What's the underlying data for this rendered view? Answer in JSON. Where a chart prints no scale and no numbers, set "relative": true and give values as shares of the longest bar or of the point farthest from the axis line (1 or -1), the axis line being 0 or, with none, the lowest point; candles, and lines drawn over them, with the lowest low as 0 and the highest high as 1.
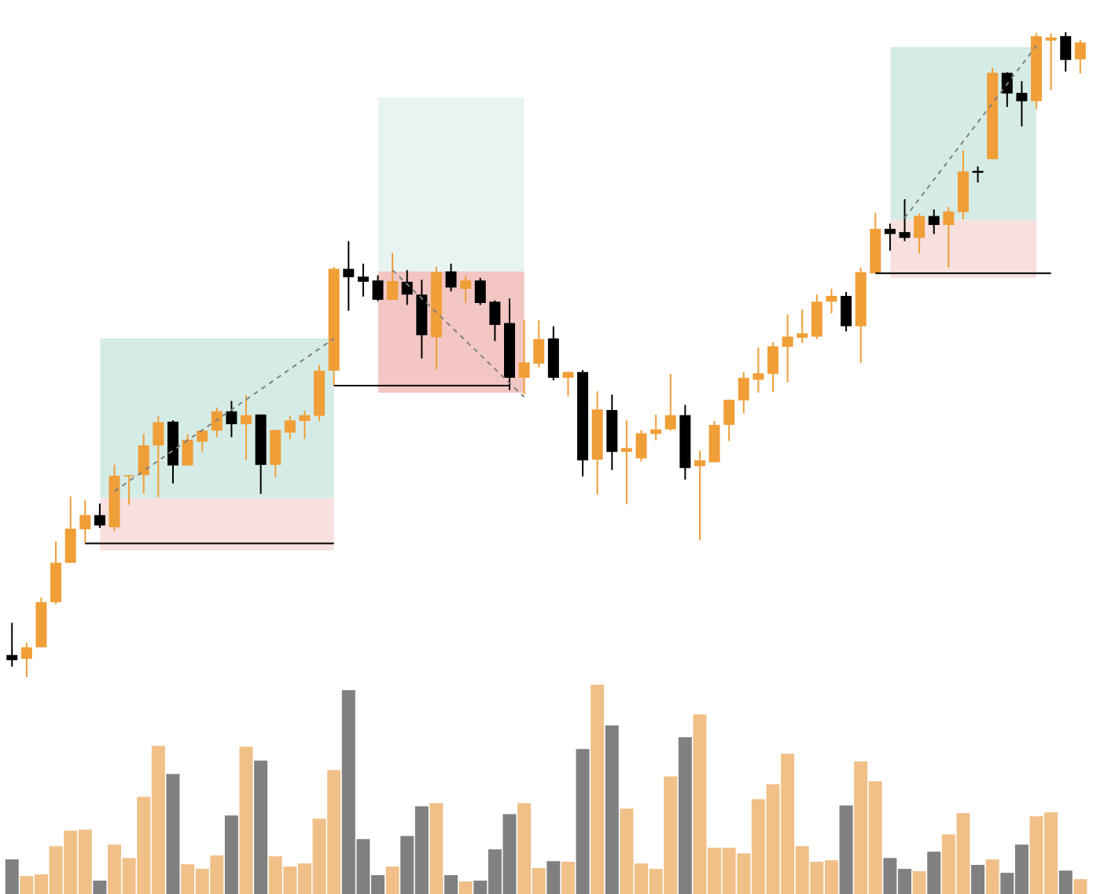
{
  "chart_data": [
    {
      "type": "candlestick",
      "relative": true,
      "tick_labels": false,
      "categories": [
        null,
        null,
        null,
        null,
        null,
        null,
        null,
        null,
        null,
        null,
        null,
        null,
        null,
        null,
        null,
        null,
        null,
        null,
        null,
        null,
        null,
        null,
        null,
        null,
        null,
        null,
        null,
        null,
        null,
        null,
        null,
        null,
        null,
        null,
        null,
        null,
        null,
        null,
        null,
        null,
        null,
        null,
        null,
        null,
        null,
        null,
        null,
        null,
        null,
        null,
        null,
        null,
        null,
        null,
        null,
        null,
        null,
        null,
        null,
        null,
        null,
        null,
        null,
        null,
        null,
        null,
        null,
        null,
        null,
        null,
        null,
        null,
        null,
        null
      ],
      "ohlc": [
        [
          0.034,
          0.084,
          0.016,
          0.026
        ],
        [
          0.028,
          0.053,
          0.0,
          0.046
        ],
        [
          0.046,
          0.123,
          0.046,
          0.116
        ],
        [
          0.116,
          0.21,
          0.113,
          0.177
        ],
        [
          0.177,
          0.28,
          0.177,
          0.23
        ],
        [
          0.229,
          0.274,
          0.208,
          0.251
        ],
        [
          0.251,
          0.269,
          0.231,
          0.235
        ],
        [
          0.232,
          0.329,
          0.226,
          0.312
        ],
        [
          0.311,
          0.313,
          0.267,
          0.313
        ],
        [
          0.313,
          0.377,
          0.284,
          0.359
        ],
        [
          0.359,
          0.405,
          0.279,
          0.395
        ],
        [
          0.396,
          0.398,
          0.3,
          0.328
        ],
        [
          0.328,
          0.377,
          0.328,
          0.368
        ],
        [
          0.365,
          0.382,
          0.35,
          0.382
        ],
        [
          0.382,
          0.418,
          0.372,
          0.412
        ],
        [
          0.412,
          0.428,
          0.372,
          0.392
        ],
        [
          0.392,
          0.437,
          0.336,
          0.406
        ],
        [
          0.407,
          0.407,
          0.284,
          0.329
        ],
        [
          0.329,
          0.383,
          0.31,
          0.383
        ],
        [
          0.379,
          0.405,
          0.369,
          0.398
        ],
        [
          0.397,
          0.413,
          0.369,
          0.406
        ],
        [
          0.405,
          0.484,
          0.397,
          0.475
        ],
        [
          0.475,
          0.636,
          0.451,
          0.633
        ],
        [
          0.633,
          0.676,
          0.568,
          0.62
        ],
        [
          0.621,
          0.641,
          0.59,
          0.613
        ],
        [
          0.615,
          0.623,
          0.583,
          0.585
        ],
        [
          0.585,
          0.658,
          0.585,
          0.614
        ],
        [
          0.613,
          0.631,
          0.577,
          0.593
        ],
        [
          0.593,
          0.616,
          0.494,
          0.53
        ],
        [
          0.527,
          0.636,
          0.477,
          0.628
        ],
        [
          0.629,
          0.641,
          0.598,
          0.604
        ],
        [
          0.602,
          0.623,
          0.58,
          0.615
        ],
        [
          0.615,
          0.619,
          0.577,
          0.58
        ],
        [
          0.582,
          0.584,
          0.521,
          0.546
        ],
        [
          0.549,
          0.587,
          0.445,
          0.464
        ],
        [
          0.464,
          0.554,
          0.438,
          0.488
        ],
        [
          0.486,
          0.553,
          0.48,
          0.524
        ],
        [
          0.525,
          0.544,
          0.46,
          0.464
        ],
        [
          0.464,
          0.474,
          0.435,
          0.473
        ],
        [
          0.473,
          0.476,
          0.311,
          0.336
        ],
        [
          0.337,
          0.443,
          0.283,
          0.415
        ],
        [
          0.414,
          0.438,
          0.321,
          0.349
        ],
        [
          0.349,
          0.398,
          0.268,
          0.355
        ],
        [
          0.339,
          0.383,
          0.334,
          0.378
        ],
        [
          0.377,
          0.407,
          0.367,
          0.384
        ],
        [
          0.384,
          0.47,
          0.382,
          0.406
        ],
        [
          0.406,
          0.422,
          0.306,
          0.324
        ],
        [
          0.327,
          0.351,
          0.212,
          0.336
        ],
        [
          0.333,
          0.397,
          0.333,
          0.391
        ],
        [
          0.391,
          0.43,
          0.366,
          0.43
        ],
        [
          0.429,
          0.473,
          0.409,
          0.464
        ],
        [
          0.461,
          0.511,
          0.441,
          0.471
        ],
        [
          0.47,
          0.519,
          0.442,
          0.513
        ],
        [
          0.512,
          0.562,
          0.457,
          0.528
        ],
        [
          0.526,
          0.57,
          0.518,
          0.533
        ],
        [
          0.528,
          0.593,
          0.524,
          0.582
        ],
        [
          0.582,
          0.602,
          0.564,
          0.591
        ],
        [
          0.591,
          0.597,
          0.536,
          0.544
        ],
        [
          0.544,
          0.635,
          0.487,
          0.628
        ],
        [
          0.626,
          0.72,
          0.626,
          0.695
        ],
        [
          0.695,
          0.703,
          0.661,
          0.687
        ],
        [
          0.69,
          0.741,
          0.676,
          0.681
        ],
        [
          0.681,
          0.719,
          0.657,
          0.715
        ],
        [
          0.715,
          0.725,
          0.687,
          0.701
        ],
        [
          0.701,
          0.729,
          0.635,
          0.722
        ],
        [
          0.721,
          0.817,
          0.71,
          0.784
        ],
        [
          0.785,
          0.792,
          0.767,
          0.782
        ],
        [
          0.803,
          0.945,
          0.803,
          0.937
        ],
        [
          0.937,
          0.938,
          0.884,
          0.905
        ],
        [
          0.906,
          0.924,
          0.854,
          0.893
        ],
        [
          0.893,
          0.999,
          0.881,
          0.994
        ],
        [
          0.987,
          0.998,
          0.91,
          0.992
        ],
        [
          0.994,
          1.0,
          0.939,
          0.957
        ],
        [
          0.958,
          0.988,
          0.936,
          0.984
        ]
      ],
      "colors": [
        "#000000",
        "#f09e38",
        "#f09e38",
        "#f09e38",
        "#f09e38",
        "#f09e38",
        "#000000",
        "#f09e38",
        "#f09e38",
        "#f09e38",
        "#f09e38",
        "#000000",
        "#f09e38",
        "#f09e38",
        "#f09e38",
        "#000000",
        "#f09e38",
        "#000000",
        "#f09e38",
        "#f09e38",
        "#f09e38",
        "#f09e38",
        "#f09e38",
        "#000000",
        "#000000",
        "#000000",
        "#f09e38",
        "#000000",
        "#000000",
        "#f09e38",
        "#000000",
        "#f09e38",
        "#000000",
        "#000000",
        "#000000",
        "#f09e38",
        "#f09e38",
        "#000000",
        "#f09e38",
        "#000000",
        "#f09e38",
        "#000000",
        "#f09e38",
        "#f09e38",
        "#f09e38",
        "#f09e38",
        "#000000",
        "#f09e38",
        "#f09e38",
        "#f09e38",
        "#f09e38",
        "#f09e38",
        "#f09e38",
        "#f09e38",
        "#f09e38",
        "#f09e38",
        "#f09e38",
        "#000000",
        "#f09e38",
        "#f09e38",
        "#000000",
        "#000000",
        "#f09e38",
        "#000000",
        "#f09e38",
        "#f09e38",
        "#000000",
        "#f09e38",
        "#000000",
        "#000000",
        "#f09e38",
        "#f09e38",
        "#000000",
        "#f09e38"
      ],
      "series": [
        {
          "type": "line",
          "color": "#808080",
          "line_style": "dashed",
          "values": [
            null,
            null,
            null,
            null,
            null,
            null,
            null,
            0.288,
            null,
            null,
            null,
            null,
            null,
            null,
            null,
            null,
            null,
            null,
            null,
            null,
            null,
            null,
            0.525,
            null,
            null,
            null,
            null,
            null,
            null,
            null,
            null,
            null,
            null,
            null,
            null,
            null,
            null,
            null,
            null,
            null,
            null,
            null,
            null,
            null,
            null,
            null,
            null,
            null,
            null,
            null,
            null,
            null,
            null,
            null,
            null,
            null,
            null,
            null,
            null,
            null,
            null,
            null,
            null,
            null,
            null,
            null,
            null,
            null,
            null,
            null,
            null,
            null,
            null,
            null
          ]
        },
        {
          "type": "line",
          "color": "#808080",
          "line_style": "dashed",
          "values": [
            null,
            null,
            null,
            null,
            null,
            null,
            null,
            null,
            null,
            null,
            null,
            null,
            null,
            null,
            null,
            null,
            null,
            null,
            null,
            null,
            null,
            null,
            null,
            null,
            null,
            null,
            0.631,
            null,
            null,
            null,
            null,
            null,
            null,
            null,
            null,
            0.434,
            null,
            null,
            null,
            null,
            null,
            null,
            null,
            null,
            null,
            null,
            null,
            null,
            null,
            null,
            null,
            null,
            null,
            null,
            null,
            null,
            null,
            null,
            null,
            null,
            null,
            null,
            null,
            null,
            null,
            null,
            null,
            null,
            null,
            null,
            null,
            null,
            null,
            null
          ]
        },
        {
          "type": "line",
          "color": "#808080",
          "line_style": "dashed",
          "values": [
            null,
            null,
            null,
            null,
            null,
            null,
            null,
            null,
            null,
            null,
            null,
            null,
            null,
            null,
            null,
            null,
            null,
            null,
            null,
            null,
            null,
            null,
            null,
            null,
            null,
            null,
            null,
            null,
            null,
            null,
            null,
            null,
            null,
            null,
            null,
            null,
            null,
            null,
            null,
            null,
            null,
            null,
            null,
            null,
            null,
            null,
            null,
            null,
            null,
            null,
            null,
            null,
            null,
            null,
            null,
            null,
            null,
            null,
            null,
            null,
            null,
            0.712,
            null,
            null,
            null,
            null,
            null,
            null,
            null,
            null,
            0.979,
            null,
            null,
            null
          ]
        },
        {
          "type": "line",
          "color": "#000000",
          "line_style": "solid",
          "values": [
            null,
            null,
            null,
            null,
            null,
            0.207,
            null,
            null,
            null,
            null,
            null,
            null,
            null,
            null,
            null,
            null,
            null,
            null,
            null,
            null,
            null,
            null,
            0.207,
            null,
            null,
            null,
            null,
            null,
            null,
            null,
            null,
            null,
            null,
            null,
            null,
            null,
            null,
            null,
            null,
            null,
            null,
            null,
            null,
            null,
            null,
            null,
            null,
            null,
            null,
            null,
            null,
            null,
            null,
            null,
            null,
            null,
            null,
            null,
            null,
            null,
            null,
            null,
            null,
            null,
            null,
            null,
            null,
            null,
            null,
            null,
            null,
            null,
            null,
            null
          ]
        },
        {
          "type": "line",
          "color": "#000000",
          "line_style": "solid",
          "values": [
            null,
            null,
            null,
            null,
            null,
            null,
            null,
            null,
            null,
            null,
            null,
            null,
            null,
            null,
            null,
            null,
            null,
            null,
            null,
            null,
            null,
            null,
            0.452,
            null,
            null,
            null,
            null,
            null,
            null,
            null,
            null,
            null,
            null,
            null,
            0.452,
            null,
            null,
            null,
            null,
            null,
            null,
            null,
            null,
            null,
            null,
            null,
            null,
            null,
            null,
            null,
            null,
            null,
            null,
            null,
            null,
            null,
            null,
            null,
            null,
            null,
            null,
            null,
            null,
            null,
            null,
            null,
            null,
            null,
            null,
            null,
            null,
            null,
            null,
            null
          ]
        },
        {
          "type": "line",
          "color": "#000000",
          "line_style": "solid",
          "values": [
            null,
            null,
            null,
            null,
            null,
            null,
            null,
            null,
            null,
            null,
            null,
            null,
            null,
            null,
            null,
            null,
            null,
            null,
            null,
            null,
            null,
            null,
            null,
            null,
            null,
            null,
            null,
            null,
            null,
            null,
            null,
            null,
            null,
            null,
            null,
            null,
            null,
            null,
            null,
            null,
            null,
            null,
            null,
            null,
            null,
            null,
            null,
            null,
            null,
            null,
            null,
            null,
            null,
            null,
            null,
            null,
            null,
            null,
            null,
            0.626,
            null,
            null,
            null,
            null,
            null,
            null,
            null,
            null,
            null,
            null,
            null,
            0.626,
            null,
            null
          ]
        }
      ],
      "bands": [
        {
          "axis": "y",
          "from": 0.277,
          "to": 0.525,
          "color": "#d5ebe6"
        },
        {
          "axis": "y",
          "from": 0.196,
          "to": 0.277,
          "color": "#f7e0de"
        },
        {
          "axis": "y",
          "from": 0.629,
          "to": 0.899,
          "color": "#e8f4f1"
        },
        {
          "axis": "y",
          "from": 0.441,
          "to": 0.629,
          "color": "#f2c6c3"
        },
        {
          "axis": "y",
          "from": 0.709,
          "to": 0.977,
          "color": "#d5ebe6"
        },
        {
          "axis": "y",
          "from": 0.619,
          "to": 0.709,
          "color": "#f7e0de"
        }
      ]
    },
    {
      "type": "bar",
      "relative": true,
      "tick_labels": false,
      "categories": [
        null,
        null,
        null,
        null,
        null,
        null,
        null,
        null,
        null,
        null,
        null,
        null,
        null,
        null,
        null,
        null,
        null,
        null,
        null,
        null,
        null,
        null,
        null,
        null,
        null,
        null,
        null,
        null,
        null,
        null,
        null,
        null,
        null,
        null,
        null,
        null,
        null,
        null,
        null,
        null,
        null,
        null,
        null,
        null,
        null,
        null,
        null,
        null,
        null,
        null,
        null,
        null,
        null,
        null,
        null,
        null,
        null,
        null,
        null,
        null,
        null,
        null,
        null,
        null,
        null,
        null,
        null,
        null,
        null,
        null,
        null,
        null,
        null,
        null
      ],
      "values": [
        0.165,
        0.086,
        0.094,
        0.228,
        0.303,
        0.307,
        0.064,
        0.236,
        0.172,
        0.464,
        0.708,
        0.573,
        0.142,
        0.12,
        0.184,
        0.375,
        0.704,
        0.637,
        0.18,
        0.131,
        0.146,
        0.36,
        0.592,
        0.974,
        0.262,
        0.09,
        0.131,
        0.277,
        0.419,
        0.434,
        0.09,
        0.06,
        0.064,
        0.213,
        0.382,
        0.434,
        0.124,
        0.157,
        0.154,
        0.693,
        1.0,
        0.805,
        0.408,
        0.146,
        0.12,
        0.562,
        0.749,
        0.858,
        0.221,
        0.221,
        0.195,
        0.453,
        0.524,
        0.67,
        0.228,
        0.154,
        0.161,
        0.423,
        0.633,
        0.539,
        0.172,
        0.12,
        0.109,
        0.202,
        0.285,
        0.386,
        0.139,
        0.165,
        0.101,
        0.236,
        0.371,
        0.39,
        0.112,
        0.071
      ],
      "colors": [
        "#808080",
        "#f0c088",
        "#f0c088",
        "#f0c088",
        "#f0c088",
        "#f0c088",
        "#808080",
        "#f0c088",
        "#f0c088",
        "#f0c088",
        "#f0c088",
        "#808080",
        "#f0c088",
        "#f0c088",
        "#f0c088",
        "#808080",
        "#f0c088",
        "#808080",
        "#f0c088",
        "#f0c088",
        "#f0c088",
        "#f0c088",
        "#f0c088",
        "#808080",
        "#808080",
        "#808080",
        "#f0c088",
        "#808080",
        "#808080",
        "#f0c088",
        "#808080",
        "#f0c088",
        "#808080",
        "#808080",
        "#808080",
        "#f0c088",
        "#f0c088",
        "#808080",
        "#f0c088",
        "#808080",
        "#f0c088",
        "#808080",
        "#f0c088",
        "#f0c088",
        "#f0c088",
        "#f0c088",
        "#808080",
        "#f0c088",
        "#f0c088",
        "#f0c088",
        "#f0c088",
        "#f0c088",
        "#f0c088",
        "#f0c088",
        "#f0c088",
        "#f0c088",
        "#f0c088",
        "#808080",
        "#f0c088",
        "#f0c088",
        "#808080",
        "#808080",
        "#f0c088",
        "#808080",
        "#f0c088",
        "#f0c088",
        "#808080",
        "#f0c088",
        "#808080",
        "#808080",
        "#f0c088",
        "#f0c088",
        "#808080",
        "#f0c088"
      ]
    }
  ]
}
